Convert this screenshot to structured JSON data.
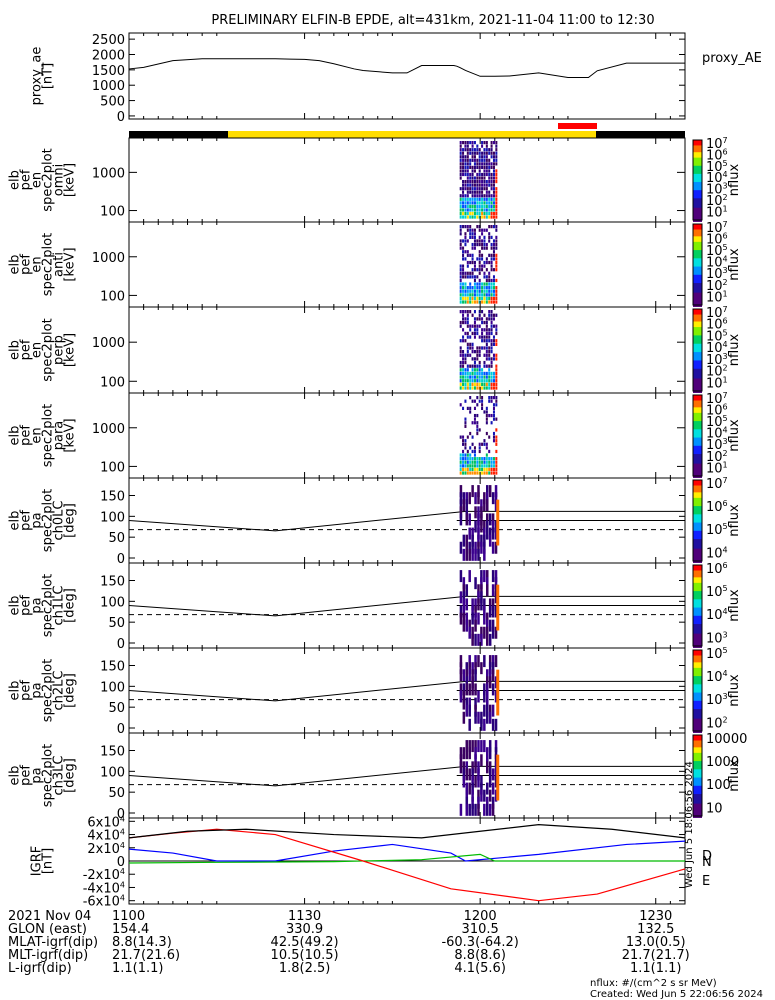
{
  "title": "PRELIMINARY ELFIN-B EPDE, alt=431km, 2021-11-04 11:00 to 12:30",
  "chart_data": [
    {
      "type": "line",
      "panel": "proxy_ae",
      "ylabel": [
        "proxy_ae",
        "[nT]"
      ],
      "legend": "proxy_AE",
      "ylim": [
        -100,
        2700
      ],
      "yticks": [
        "2500",
        "2000",
        "1500",
        "1000",
        "500",
        "0"
      ],
      "series": [
        {
          "x": [
            0,
            5,
            15,
            25,
            35,
            50,
            55,
            60,
            65,
            70,
            77,
            80,
            90,
            95,
            100,
            105,
            111,
            112,
            113,
            115,
            120,
            125,
            130,
            140,
            150,
            157,
            160,
            170,
            185,
            190
          ],
          "y": [
            1530,
            1580,
            1800,
            1860,
            1860,
            1860,
            1850,
            1840,
            1800,
            1700,
            1530,
            1480,
            1400,
            1400,
            1640,
            1640,
            1640,
            1620,
            1580,
            1480,
            1290,
            1290,
            1300,
            1400,
            1250,
            1250,
            1470,
            1720,
            1720,
            1720
          ]
        }
      ]
    },
    {
      "type": "heatmap",
      "panel": "elb_pef_en_spec2plot_omni",
      "ylabel": [
        "elb",
        "pef",
        "en",
        "spec2plot",
        "omni",
        "[keV]"
      ],
      "yscale": "log",
      "yticks": [
        "1000",
        "100"
      ],
      "colorbar_label": "nflux",
      "colorbar_ticks": [
        "10^7",
        "10^6",
        "10^5",
        "10^4",
        "10^3",
        "10^2",
        "10^1"
      ]
    },
    {
      "type": "heatmap",
      "panel": "elb_pef_en_spec2plot_anti",
      "ylabel": [
        "elb",
        "pef",
        "en",
        "spec2plot",
        "anti",
        "[keV]"
      ],
      "yscale": "log",
      "yticks": [
        "1000",
        "100"
      ],
      "colorbar_label": "nflux",
      "colorbar_ticks": [
        "10^7",
        "10^6",
        "10^5",
        "10^4",
        "10^3",
        "10^2",
        "10^1"
      ]
    },
    {
      "type": "heatmap",
      "panel": "elb_pef_en_spec2plot_perp",
      "ylabel": [
        "elb",
        "pef",
        "en",
        "spec2plot",
        "perp",
        "[keV]"
      ],
      "yscale": "log",
      "yticks": [
        "1000",
        "100"
      ],
      "colorbar_label": "nflux",
      "colorbar_ticks": [
        "10^7",
        "10^6",
        "10^5",
        "10^4",
        "10^3",
        "10^2",
        "10^1"
      ]
    },
    {
      "type": "heatmap",
      "panel": "elb_pef_en_spec2plot_para",
      "ylabel": [
        "elb",
        "pef",
        "en",
        "spec2plot",
        "para",
        "[keV]"
      ],
      "yscale": "log",
      "yticks": [
        "1000",
        "100"
      ],
      "colorbar_label": "nflux",
      "colorbar_ticks": [
        "10^7",
        "10^6",
        "10^5",
        "10^4",
        "10^3",
        "10^2",
        "10^1"
      ]
    },
    {
      "type": "heatmap",
      "panel": "elb_pef_pa_spec2plot_ch0LC",
      "ylabel": [
        "elb",
        "pef",
        "pa",
        "spec2plot",
        "ch0LC",
        "[deg]"
      ],
      "ylim": [
        0,
        180
      ],
      "yticks": [
        "150",
        "100",
        "50",
        "0"
      ],
      "colorbar_label": "nflux",
      "colorbar_ticks": [
        "10^7",
        "10^6",
        "10^5",
        "10^4"
      ]
    },
    {
      "type": "heatmap",
      "panel": "elb_pef_pa_spec2plot_ch1LC",
      "ylabel": [
        "elb",
        "pef",
        "pa",
        "spec2plot",
        "ch1LC",
        "[deg]"
      ],
      "ylim": [
        0,
        180
      ],
      "yticks": [
        "150",
        "100",
        "50",
        "0"
      ],
      "colorbar_label": "nflux",
      "colorbar_ticks": [
        "10^6",
        "10^5",
        "10^4",
        "10^3"
      ]
    },
    {
      "type": "heatmap",
      "panel": "elb_pef_pa_spec2plot_ch2LC",
      "ylabel": [
        "elb",
        "pef",
        "pa",
        "spec2plot",
        "ch2LC",
        "[deg]"
      ],
      "ylim": [
        0,
        180
      ],
      "yticks": [
        "150",
        "100",
        "50",
        "0"
      ],
      "colorbar_label": "nflux",
      "colorbar_ticks": [
        "10^5",
        "10^4",
        "10^3",
        "10^2"
      ]
    },
    {
      "type": "heatmap",
      "panel": "elb_pef_pa_spec2plot_ch3LC",
      "ylabel": [
        "elb",
        "pef",
        "pa",
        "spec2plot",
        "ch3LC",
        "[deg]"
      ],
      "ylim": [
        0,
        180
      ],
      "yticks": [
        "150",
        "100",
        "50",
        "0"
      ],
      "colorbar_label": "nflux",
      "colorbar_ticks": [
        "10000",
        "1000",
        "100",
        "10"
      ]
    },
    {
      "type": "line",
      "panel": "IGRF",
      "ylabel": [
        "IGRF",
        "[nT]"
      ],
      "ylim": [
        -65000,
        65000
      ],
      "yticks": [
        "6x10^4",
        "4x10^4",
        "2x10^4",
        "0",
        "-2x10^4",
        "-4x10^4",
        "-6x10^4"
      ],
      "legend": [
        "N",
        "E",
        "D"
      ],
      "series": [
        {
          "name": "N",
          "color": "#0000ff",
          "x": [
            0,
            15,
            30,
            50,
            70,
            90,
            110,
            115,
            140,
            170,
            190
          ],
          "y": [
            18000,
            12000,
            0,
            0,
            15000,
            25000,
            12000,
            0,
            10000,
            25000,
            30000
          ]
        },
        {
          "name": "E",
          "color": "#00bb00",
          "x": [
            0,
            30,
            70,
            100,
            120,
            125,
            190
          ],
          "y": [
            -3000,
            -2000,
            -1000,
            2000,
            10000,
            0,
            0
          ]
        },
        {
          "name": "D",
          "color": "#ff0000",
          "x": [
            0,
            15,
            30,
            50,
            80,
            110,
            140,
            160,
            190
          ],
          "y": [
            35000,
            42000,
            48000,
            40000,
            0,
            -42000,
            -60000,
            -50000,
            -12000
          ]
        },
        {
          "name": "",
          "color": "#000000",
          "x": [
            0,
            20,
            40,
            70,
            100,
            120,
            140,
            165,
            190
          ],
          "y": [
            35000,
            45000,
            48000,
            40000,
            35000,
            45000,
            55000,
            48000,
            35000
          ]
        }
      ]
    }
  ],
  "xaxis": {
    "ticks": [
      "1100",
      "1130",
      "1200",
      "1230"
    ],
    "rows": [
      {
        "label": "2021 Nov 04",
        "values": [
          "1100",
          "1130",
          "1200",
          "1230"
        ]
      },
      {
        "label": "GLON (east)",
        "values": [
          "154.4",
          "330.9",
          "310.5",
          "132.5"
        ]
      },
      {
        "label": "MLAT-igrf(dip)",
        "values": [
          "8.8(14.3)",
          "42.5(49.2)",
          "-60.3(-64.2)",
          "13.0(0.5)"
        ]
      },
      {
        "label": "MLT-igrf(dip)",
        "values": [
          "21.7(21.6)",
          "10.5(10.5)",
          "8.8(8.6)",
          "21.7(21.7)"
        ]
      },
      {
        "label": "L-igrf(dip)",
        "values": [
          "1.1(1.1)",
          "1.8(2.5)",
          "4.1(5.6)",
          "1.1(1.1)"
        ]
      }
    ]
  },
  "footer": {
    "units": "nflux: #/(cm^2 s sr MeV)",
    "created": "Created: Wed Jun  5 22:06:56 2024",
    "side_stamp": "Wed Jun  5 18:06:56 2024"
  }
}
